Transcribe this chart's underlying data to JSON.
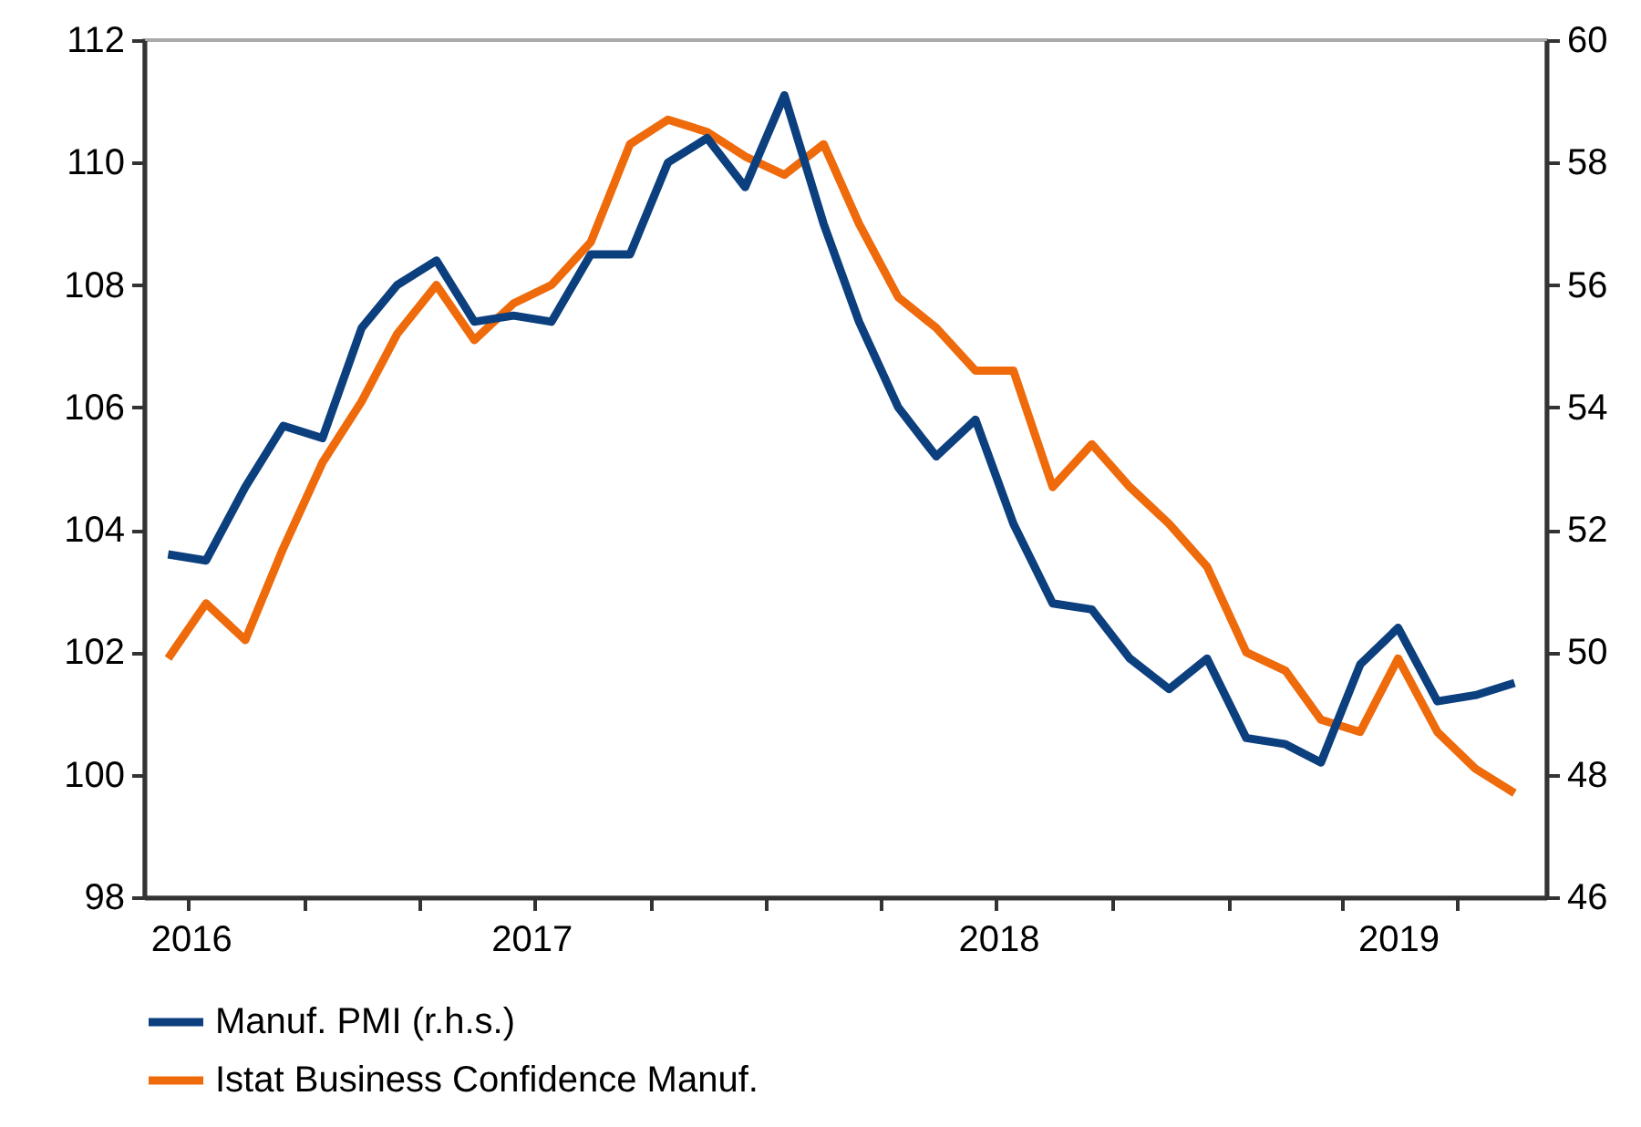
{
  "chart_data": {
    "type": "line",
    "x": [
      "2016-09-15",
      "2016-10-15",
      "2016-11-15",
      "2016-12-15",
      "2017-01-15",
      "2017-02-15",
      "2017-03-15",
      "2017-04-15",
      "2017-05-15",
      "2017-06-15",
      "2017-07-15",
      "2017-08-15",
      "2017-09-15",
      "2017-10-15",
      "2017-11-15",
      "2017-12-15",
      "2018-01-15",
      "2018-02-15",
      "2018-03-15",
      "2018-04-15",
      "2018-05-15",
      "2018-06-15",
      "2018-07-15",
      "2018-08-15",
      "2018-09-15",
      "2018-10-15",
      "2018-11-15",
      "2018-12-15",
      "2019-01-15",
      "2019-02-15",
      "2019-03-15",
      "2019-04-15",
      "2019-05-15",
      "2019-06-15",
      "2019-07-15",
      "2019-08-15"
    ],
    "series": [
      {
        "name": "Manuf. PMI (r.h.s.)",
        "color": "#0b3f7e",
        "axis": "y2",
        "values": [
          51.6,
          51.5,
          52.7,
          53.7,
          53.5,
          55.3,
          56.0,
          56.4,
          55.4,
          55.5,
          55.4,
          56.5,
          56.5,
          58.0,
          58.4,
          57.6,
          59.1,
          57.0,
          55.4,
          54.0,
          53.2,
          53.8,
          52.1,
          50.8,
          50.7,
          49.9,
          49.4,
          49.9,
          48.6,
          48.5,
          48.2,
          49.8,
          50.4,
          49.2,
          49.3,
          49.5
        ]
      },
      {
        "name": "Istat Business Confidence Manuf.",
        "color": "#ee6a0a",
        "values": [
          101.9,
          102.8,
          102.2,
          103.7,
          105.1,
          106.1,
          107.2,
          108.0,
          107.1,
          107.7,
          108.0,
          108.7,
          110.3,
          110.7,
          110.5,
          110.1,
          109.8,
          110.3,
          109.0,
          107.8,
          107.3,
          106.6,
          106.6,
          104.7,
          105.4,
          104.7,
          104.1,
          103.4,
          102.0,
          101.7,
          100.9,
          100.7,
          101.9,
          100.7,
          100.1,
          99.7
        ]
      }
    ],
    "xlim": [
      "2016-08-27",
      "2019-09-09"
    ],
    "xticks": [
      {
        "value": "2016-10-01",
        "label": null
      },
      {
        "value": "2017-01-01",
        "label": null
      },
      {
        "value": "2017-04-01",
        "label": null
      },
      {
        "value": "2017-07-01",
        "label": null
      },
      {
        "value": "2017-10-01",
        "label": null
      },
      {
        "value": "2018-01-01",
        "label": null
      },
      {
        "value": "2018-04-01",
        "label": null
      },
      {
        "value": "2018-07-01",
        "label": null
      },
      {
        "value": "2018-10-01",
        "label": null
      },
      {
        "value": "2019-01-01",
        "label": null
      },
      {
        "value": "2019-04-01",
        "label": null
      },
      {
        "value": "2019-07-01",
        "label": null
      },
      {
        "value": "2016-10-03",
        "label": "2016"
      },
      {
        "value": "2017-06-29",
        "label": "2017"
      },
      {
        "value": "2018-07-03",
        "label": "2018"
      },
      {
        "value": "2019-05-15",
        "label": "2019"
      }
    ],
    "ylim": [
      98,
      112
    ],
    "yticks": [
      98,
      100,
      102,
      104,
      106,
      108,
      110,
      112
    ],
    "y2lim": [
      46,
      60
    ],
    "y2ticks": [
      46,
      48,
      50,
      52,
      54,
      56,
      58,
      60
    ],
    "legend": "bottom"
  }
}
